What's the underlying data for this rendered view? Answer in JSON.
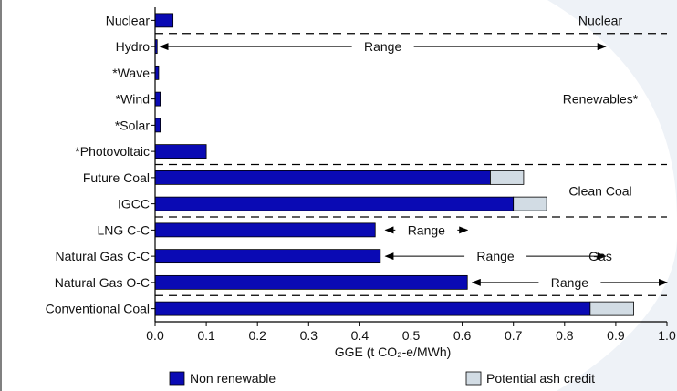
{
  "chart_data": {
    "type": "bar",
    "orientation": "horizontal",
    "stacked": true,
    "categories": [
      "Nuclear",
      "Hydro",
      "*Wave",
      "*Wind",
      "*Solar",
      "*Photovoltaic",
      "Future Coal",
      "IGCC",
      "LNG C-C",
      "Natural Gas C-C",
      "Natural Gas O-C",
      "Conventional Coal"
    ],
    "series": [
      {
        "name": "Non renewable",
        "color": "#0a0ab4",
        "values": [
          0.035,
          0.004,
          0.007,
          0.01,
          0.01,
          0.1,
          0.655,
          0.7,
          0.43,
          0.44,
          0.61,
          0.85
        ]
      },
      {
        "name": "Potential ash credit",
        "color": "#d2dce4",
        "values": [
          0,
          0,
          0,
          0,
          0,
          0,
          0.065,
          0.065,
          0,
          0,
          0,
          0.085
        ]
      }
    ],
    "xlabel": "GGE (t CO₂-e/MWh)",
    "xlim": [
      0,
      1.0
    ],
    "xticks": [
      "0.0",
      "0.1",
      "0.2",
      "0.3",
      "0.4",
      "0.5",
      "0.6",
      "0.7",
      "0.8",
      "0.9",
      "1.0"
    ],
    "groups": [
      {
        "label": "Nuclear",
        "categories": [
          "Nuclear"
        ]
      },
      {
        "label": "Renewables*",
        "categories": [
          "Hydro",
          "*Wave",
          "*Wind",
          "*Solar",
          "*Photovoltaic"
        ]
      },
      {
        "label": "Clean Coal",
        "categories": [
          "Future Coal",
          "IGCC"
        ]
      },
      {
        "label": "Gas",
        "categories": [
          "LNG C-C",
          "Natural Gas C-C",
          "Natural Gas O-C"
        ]
      }
    ],
    "ranges": [
      {
        "category": "Hydro",
        "label": "Range",
        "from": 0.01,
        "to": 0.88
      },
      {
        "category": "LNG C-C",
        "label": "Range",
        "from": 0.45,
        "to": 0.61
      },
      {
        "category": "Natural Gas C-C",
        "label": "Range",
        "from": 0.45,
        "to": 0.88
      },
      {
        "category": "Natural Gas O-C",
        "label": "Range",
        "from": 0.62,
        "to": 1.0
      }
    ],
    "legend": {
      "position": "bottom",
      "entries": [
        "Non renewable",
        "Potential ash credit"
      ]
    },
    "grid": false
  }
}
